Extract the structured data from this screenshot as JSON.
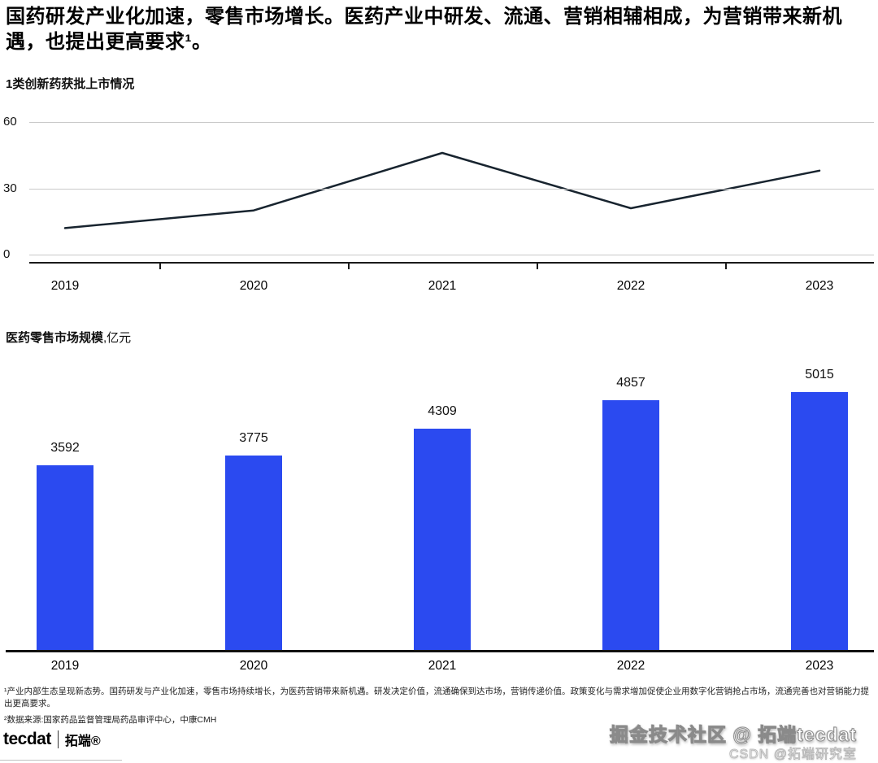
{
  "header": {
    "title": "国药研发产业化加速，零售市场增长。医药产业中研发、流通、营销相辅相成，为营销带来新机遇，也提出更高要求¹。"
  },
  "chart_data": [
    {
      "type": "line",
      "title": "1类创新药获批上市情况",
      "x": [
        "2019",
        "2020",
        "2021",
        "2022",
        "2023"
      ],
      "values": [
        12,
        20,
        46,
        21,
        38
      ],
      "ylim": [
        0,
        60
      ],
      "yticks": [
        0,
        30,
        60
      ],
      "line_color": "#18242f",
      "grid": "horizontal"
    },
    {
      "type": "bar",
      "title": "医药零售市场规模",
      "unit": ",亿元",
      "categories": [
        "2019",
        "2020",
        "2021",
        "2022",
        "2023"
      ],
      "values": [
        3592,
        3775,
        4309,
        4857,
        5015
      ],
      "bar_color": "#2b4af0",
      "value_labels": true
    }
  ],
  "footnotes": {
    "note1": "¹产业内部生态呈现新态势。国药研发与产业化加速，零售市场持续增长，为医药营销带来新机遇。研发决定价值，流通确保到达市场，营销传递价值。政策变化与需求增加促使企业用数字化营销抢占市场，流通完善也对营销能力提出更高要求。",
    "note2": "²数据来源:国家药品监督管理局药品审评中心，中康CMH"
  },
  "footer": {
    "logo_text": "tecdat",
    "logo_suffix": "拓端®",
    "watermark_line1": "掘金技术社区 @ 拓端tecdat",
    "watermark_line2": "CSDN @拓端研究室"
  }
}
